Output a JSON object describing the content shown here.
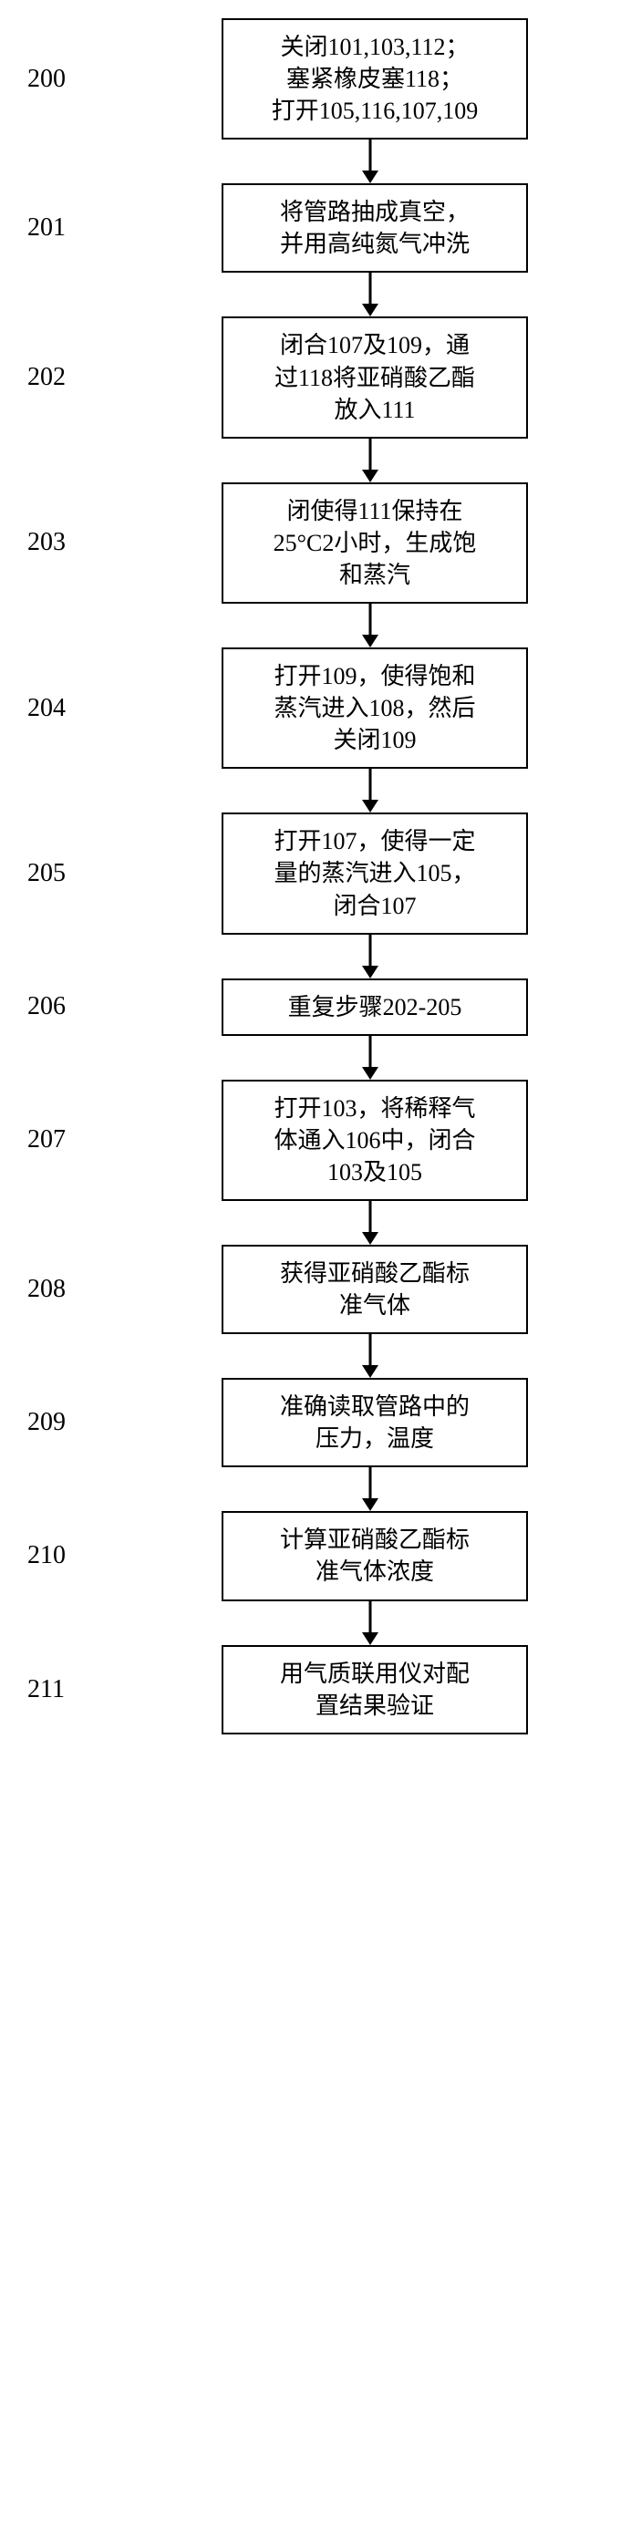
{
  "flow": {
    "type": "flowchart",
    "box_border_color": "#000000",
    "box_border_width": 2,
    "background_color": "#ffffff",
    "text_color": "#000000",
    "font_size": 26,
    "num_font_size": 28,
    "arrow_height": 48,
    "arrow_color": "#000000",
    "arrow_stroke_width": 3,
    "arrow_head_width": 18,
    "arrow_head_height": 14,
    "steps": [
      {
        "num": "200",
        "lines": [
          "关闭101,103,112；",
          "塞紧橡皮塞118；",
          "打开105,116,107,109"
        ]
      },
      {
        "num": "201",
        "lines": [
          "将管路抽成真空，",
          "并用高纯氮气冲洗"
        ]
      },
      {
        "num": "202",
        "lines": [
          "闭合107及109，通",
          "过118将亚硝酸乙酯",
          "放入111"
        ]
      },
      {
        "num": "203",
        "lines": [
          "闭使得111保持在",
          "25°C2小时，生成饱",
          "和蒸汽"
        ]
      },
      {
        "num": "204",
        "lines": [
          "打开109，使得饱和",
          "蒸汽进入108，然后",
          "关闭109"
        ]
      },
      {
        "num": "205",
        "lines": [
          "打开107，使得一定",
          "量的蒸汽进入105，",
          "闭合107"
        ]
      },
      {
        "num": "206",
        "lines": [
          "重复步骤202-205"
        ]
      },
      {
        "num": "207",
        "lines": [
          "打开103，将稀释气",
          "体通入106中，闭合",
          "103及105"
        ]
      },
      {
        "num": "208",
        "lines": [
          "获得亚硝酸乙酯标",
          "准气体"
        ]
      },
      {
        "num": "209",
        "lines": [
          "准确读取管路中的",
          "压力，温度"
        ]
      },
      {
        "num": "210",
        "lines": [
          "计算亚硝酸乙酯标",
          "准气体浓度"
        ]
      },
      {
        "num": "211",
        "lines": [
          "用气质联用仪对配",
          "置结果验证"
        ]
      }
    ]
  }
}
